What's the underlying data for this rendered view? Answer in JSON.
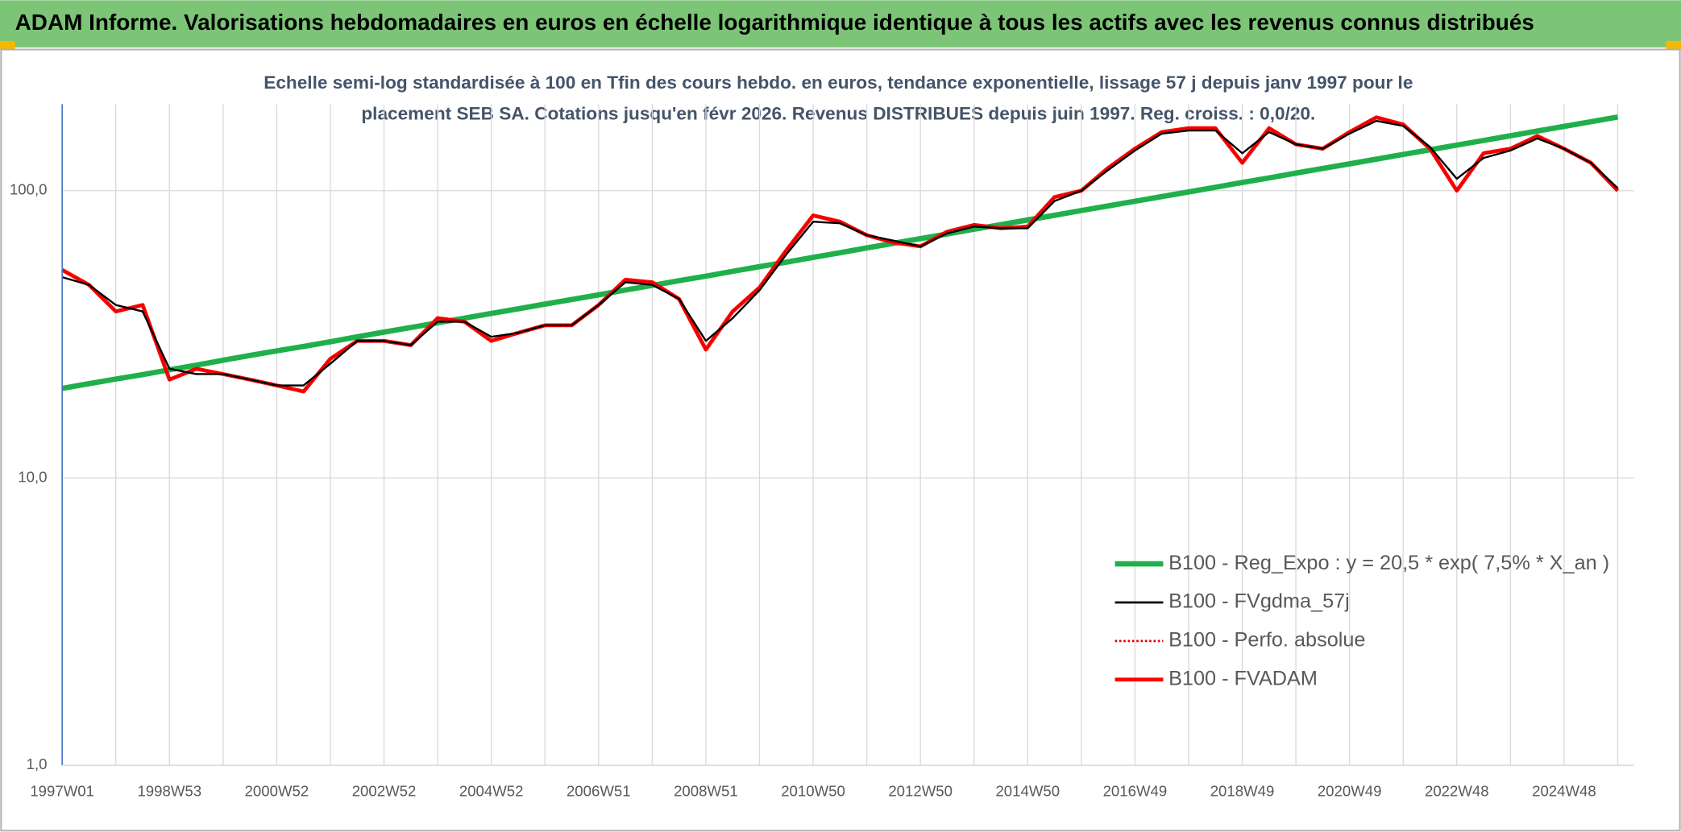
{
  "chart_data": {
    "type": "line",
    "title": "ADAM Informe. Valorisations hebdomadaires en euros en échelle logarithmique identique à tous les actifs avec les revenus connus distribués",
    "subtitle": [
      "Echelle semi-log standardisée à 100 en Tfin des cours hebdo. en euros, tendance exponentielle, lissage 57 j depuis janv 1997 pour le",
      "placement SEB SA. Cotations jusqu'en févr 2026. Revenus DISTRIBUES depuis juin 1997. Reg. croiss. : 0,0/20."
    ],
    "categories": [
      "1997W01",
      null,
      null,
      null,
      "1998W53",
      null,
      null,
      null,
      "2000W52",
      null,
      null,
      null,
      "2002W52",
      null,
      null,
      null,
      "2004W52",
      null,
      null,
      null,
      "2006W51",
      null,
      null,
      null,
      "2008W51",
      null,
      null,
      null,
      "2010W50",
      null,
      null,
      null,
      "2012W50",
      null,
      null,
      null,
      "2014W50",
      null,
      null,
      null,
      "2016W49",
      null,
      null,
      null,
      "2018W49",
      null,
      null,
      null,
      "2020W49",
      null,
      null,
      null,
      "2022W48",
      null,
      null,
      null,
      "2024W48",
      null,
      null
    ],
    "log_scale": true,
    "ylim": [
      1,
      200
    ],
    "yticks": [
      {
        "value": 1,
        "label": "1,0"
      },
      {
        "value": 10,
        "label": "10,0"
      },
      {
        "value": 100,
        "label": "100,0"
      }
    ],
    "grid": true,
    "legend": "lower right",
    "series": [
      {
        "name": "B100 - Reg_Expo : y = 20,5 * exp( 7,5% *  X_an )",
        "color": "#1fb04b",
        "linestyle": "solid",
        "values": [
          20.5,
          21.3,
          22.1,
          22.9,
          23.8,
          24.7,
          25.7,
          26.7,
          27.7,
          28.7,
          29.8,
          31.0,
          32.2,
          33.4,
          34.7,
          36.0,
          37.4,
          38.8,
          40.3,
          41.8,
          43.4,
          45.1,
          46.8,
          48.6,
          50.4,
          52.4,
          54.4,
          56.4,
          58.6,
          60.8,
          63.2,
          65.6,
          68.1,
          70.7,
          73.4,
          76.2,
          79.1,
          82.1,
          85.3,
          88.5,
          91.9,
          95.4,
          99.0,
          102.8,
          106.8,
          110.8,
          115.1,
          119.5,
          124.0,
          128.8,
          133.7,
          138.8,
          144.1,
          149.6,
          155.3,
          161.3,
          167.4,
          173.8,
          180.5
        ]
      },
      {
        "name": "B100 - FVgdma_57j",
        "color": "#000000",
        "linestyle": "solid",
        "values": [
          50,
          47,
          40,
          38,
          24,
          23,
          23,
          22,
          21,
          21,
          25,
          30,
          30,
          29,
          35,
          35,
          31,
          32,
          34,
          34,
          40,
          48,
          47,
          42,
          30,
          36,
          45,
          60,
          78,
          77,
          70,
          67,
          64,
          71,
          75,
          74,
          74,
          92,
          100,
          118,
          138,
          158,
          162,
          162,
          135,
          160,
          145,
          140,
          158,
          175,
          168,
          142,
          110,
          130,
          138,
          152,
          140,
          125,
          102
        ]
      },
      {
        "name": "B100 - Perfo. absolue",
        "color": "#e00000",
        "linestyle": "dotted",
        "values": [
          53,
          47,
          38,
          40,
          22,
          24,
          23,
          22,
          21,
          20,
          26,
          30,
          30,
          29,
          36,
          35,
          30,
          32,
          34,
          34,
          40,
          49,
          48,
          42,
          28,
          38,
          46,
          62,
          82,
          78,
          70,
          66,
          64,
          72,
          76,
          74,
          75,
          95,
          100,
          120,
          140,
          160,
          165,
          165,
          125,
          165,
          145,
          140,
          160,
          180,
          170,
          140,
          100,
          135,
          140,
          155,
          140,
          125,
          100
        ]
      },
      {
        "name": "B100 - FVADAM",
        "color": "#ff0000",
        "linestyle": "solid",
        "values": [
          53,
          47,
          38,
          40,
          22,
          24,
          23,
          22,
          21,
          20,
          26,
          30,
          30,
          29,
          36,
          35,
          30,
          32,
          34,
          34,
          40,
          49,
          48,
          42,
          28,
          38,
          46,
          62,
          82,
          78,
          70,
          66,
          64,
          72,
          76,
          74,
          75,
          95,
          100,
          120,
          140,
          160,
          165,
          165,
          125,
          165,
          145,
          140,
          160,
          180,
          170,
          140,
          100,
          135,
          140,
          155,
          140,
          125,
          100
        ]
      }
    ]
  }
}
